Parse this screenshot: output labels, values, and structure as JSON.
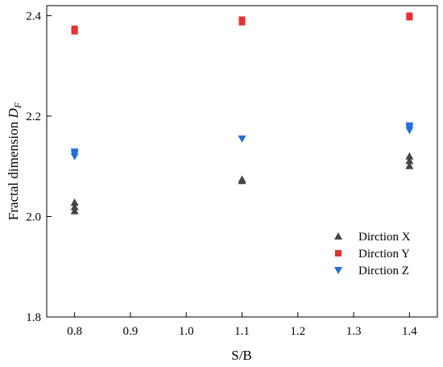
{
  "chart_data": {
    "type": "scatter",
    "title": "",
    "xlabel": "S/B",
    "ylabel_text": "Fractal dimension ",
    "ylabel_symbol": "D",
    "ylabel_subscript": "F",
    "xlim": [
      0.75,
      1.45
    ],
    "ylim": [
      1.8,
      2.42
    ],
    "x_ticks": [
      "0.8",
      "0.9",
      "1.0",
      "1.1",
      "1.2",
      "1.3",
      "1.4"
    ],
    "y_ticks": [
      "1.8",
      "2.0",
      "2.2",
      "2.4"
    ],
    "grid": false,
    "legend_position": "bottom-right",
    "series": [
      {
        "name": "Dirction X",
        "marker": "triangle-up",
        "color": "#444444",
        "x": [
          0.8,
          0.8,
          0.8,
          1.1,
          1.1,
          1.4,
          1.4,
          1.4
        ],
        "y": [
          2.028,
          2.019,
          2.011,
          2.074,
          2.071,
          2.12,
          2.111,
          2.101
        ]
      },
      {
        "name": "Dirction Y",
        "marker": "square",
        "color": "#e8312f",
        "x": [
          0.8,
          0.8,
          1.1,
          1.1,
          1.4,
          1.4
        ],
        "y": [
          2.374,
          2.369,
          2.392,
          2.387,
          2.4,
          2.397
        ]
      },
      {
        "name": "Dirction Z",
        "marker": "triangle-down",
        "color": "#1f6fdf",
        "x": [
          0.8,
          0.8,
          0.8,
          1.1,
          1.4,
          1.4,
          1.4
        ],
        "y": [
          2.129,
          2.125,
          2.12,
          2.155,
          2.181,
          2.177,
          2.172
        ]
      }
    ]
  }
}
